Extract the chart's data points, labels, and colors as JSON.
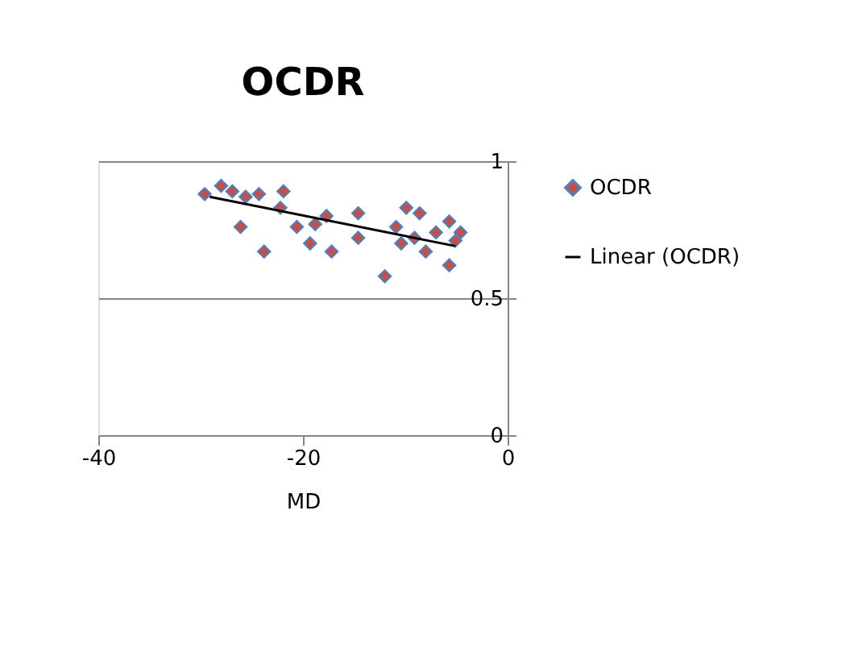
{
  "chart_data": {
    "type": "scatter",
    "title": "OCDR",
    "xlabel": "MD",
    "xlim": [
      -40,
      0
    ],
    "xticks": [
      -40,
      -20,
      0
    ],
    "ylim": [
      0,
      1
    ],
    "yticks": [
      0,
      0.5,
      1
    ],
    "grid": "y",
    "legend": "right",
    "marker": "diamond",
    "series": [
      {
        "name": "OCDR",
        "color": "#c0504d",
        "x": [
          -29.6,
          -28.0,
          -26.9,
          -25.6,
          -24.3,
          -26.1,
          -23.8,
          -21.9,
          -22.2,
          -20.6,
          -18.8,
          -17.7,
          -19.3,
          -17.2,
          -14.6,
          -14.6,
          -12.0,
          -10.9,
          -9.9,
          -8.6,
          -9.1,
          -8.0,
          -7.0,
          -5.7,
          -5.1,
          -5.7,
          -4.6,
          -10.4
        ],
        "values": [
          0.88,
          0.91,
          0.89,
          0.87,
          0.88,
          0.76,
          0.67,
          0.89,
          0.83,
          0.76,
          0.77,
          0.8,
          0.7,
          0.67,
          0.81,
          0.72,
          0.58,
          0.76,
          0.83,
          0.81,
          0.72,
          0.67,
          0.74,
          0.78,
          0.71,
          0.62,
          0.74,
          0.7
        ]
      },
      {
        "name": "Linear (OCDR)",
        "type": "line",
        "marker": "none",
        "color": "#000000",
        "x": [
          -29.1,
          -5.1
        ],
        "values": [
          0.87,
          0.69
        ]
      }
    ]
  }
}
